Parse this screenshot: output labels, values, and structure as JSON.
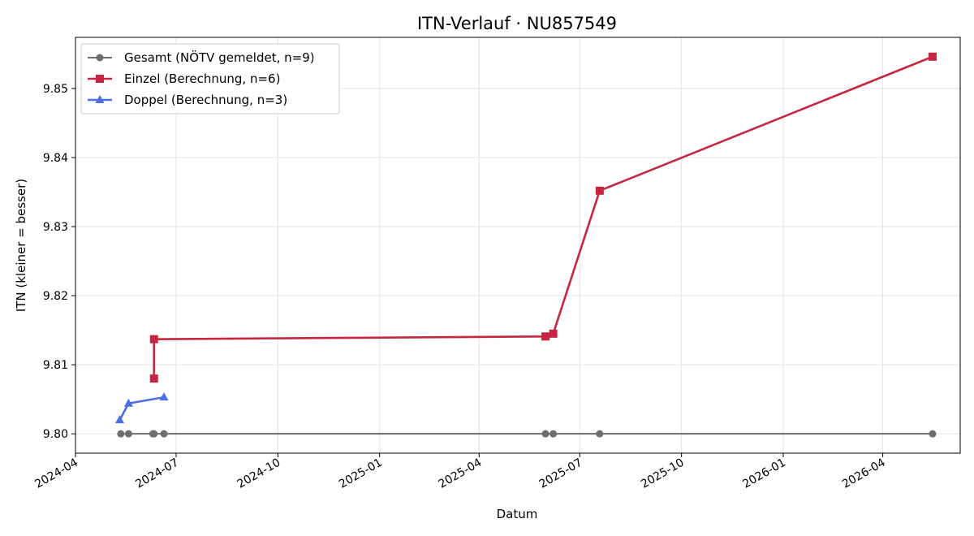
{
  "chart_data": {
    "type": "line",
    "title": "ITN-Verlauf · NU857549",
    "xlabel": "Datum",
    "ylabel": "ITN  (kleiner = besser)",
    "x_ticks": [
      "2024-04",
      "2024-07",
      "2024-10",
      "2025-01",
      "2025-04",
      "2025-07",
      "2025-10",
      "2026-01",
      "2026-04"
    ],
    "y_ticks": [
      "9.80",
      "9.81",
      "9.82",
      "9.83",
      "9.84",
      "9.85"
    ],
    "xlim": [
      "2024-04-01",
      "2026-06-10"
    ],
    "ylim": [
      9.7972,
      9.8574
    ],
    "grid": true,
    "legend_position": "top-left",
    "series": [
      {
        "name": "Gesamt (NÖTV gemeldet, n=9)",
        "color": "#6e6e6e",
        "marker": "circle",
        "x": [
          "2024-05-12",
          "2024-05-19",
          "2024-06-10",
          "2024-06-11",
          "2024-06-20",
          "2025-05-31",
          "2025-06-07",
          "2025-07-19",
          "2026-05-16"
        ],
        "y": [
          9.8,
          9.8,
          9.8,
          9.8,
          9.8,
          9.8,
          9.8,
          9.8,
          9.8
        ]
      },
      {
        "name": "Einzel (Berechnung, n=6)",
        "color": "#c62641",
        "marker": "square",
        "x": [
          "2024-06-11",
          "2024-06-11",
          "2025-05-31",
          "2025-06-07",
          "2025-07-19",
          "2026-05-16"
        ],
        "y": [
          9.808,
          9.8137,
          9.8141,
          9.8145,
          9.8352,
          9.8546
        ]
      },
      {
        "name": "Doppel (Berechnung, n=3)",
        "color": "#4c6fe8",
        "marker": "triangle",
        "x": [
          "2024-05-11",
          "2024-05-19",
          "2024-06-20"
        ],
        "y": [
          9.802,
          9.8044,
          9.8053
        ]
      }
    ]
  }
}
